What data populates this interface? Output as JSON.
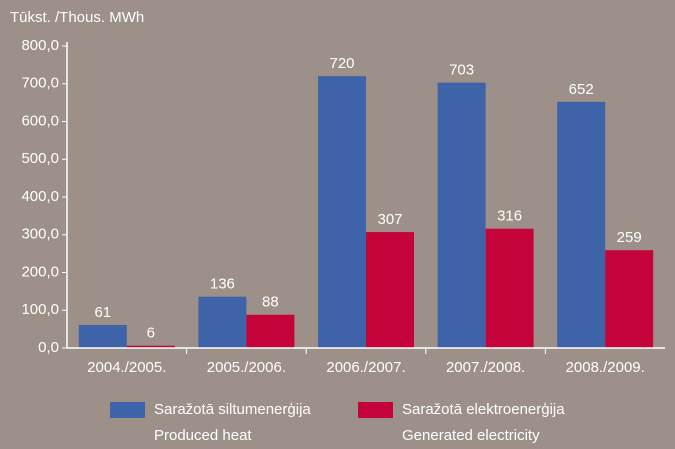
{
  "chart_data": {
    "type": "bar",
    "y_label": "Tūkst. /Thous. MWh",
    "categories": [
      "2004./2005.",
      "2005./2006.",
      "2006./2007.",
      "2007./2008.",
      "2008./2009."
    ],
    "series": [
      {
        "name": "Saražotā siltumenerģija\nProduced heat",
        "color": "#3f63a9",
        "values": [
          61,
          136,
          720,
          703,
          652
        ]
      },
      {
        "name": "Saražotā elektroenerģija\nGenerated electricity",
        "color": "#c4033a",
        "values": [
          6,
          88,
          307,
          316,
          259
        ]
      }
    ],
    "ylim": [
      0,
      800
    ],
    "yticks": [
      {
        "value": 0,
        "label": "0,0"
      },
      {
        "value": 100,
        "label": "100,0"
      },
      {
        "value": 200,
        "label": "200,0"
      },
      {
        "value": 300,
        "label": "300,0"
      },
      {
        "value": 400,
        "label": "400,0"
      },
      {
        "value": 500,
        "label": "500,0"
      },
      {
        "value": 600,
        "label": "600,0"
      },
      {
        "value": 700,
        "label": "700,0"
      },
      {
        "value": 800,
        "label": "800,0"
      }
    ]
  }
}
